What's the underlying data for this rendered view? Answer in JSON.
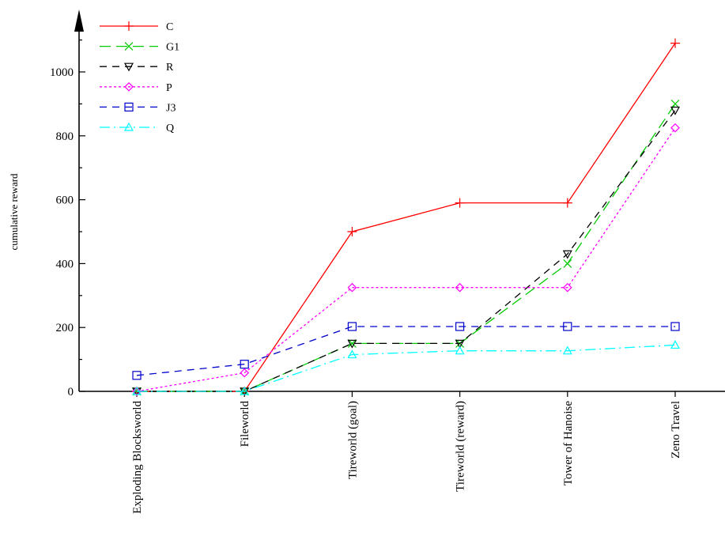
{
  "chart_data": {
    "type": "line",
    "title": "",
    "xlabel": "",
    "ylabel": "cumulative reward",
    "categories": [
      "Exploding Blocksworld",
      "Fileworld",
      "Tireworld (goal)",
      "Tireworld (reward)",
      "Tower of Hanoise",
      "Zeno Travel"
    ],
    "ylim": [
      0,
      1100
    ],
    "yticks": [
      0,
      200,
      400,
      600,
      800,
      1000
    ],
    "grid": false,
    "legend_position": "top-left",
    "series": [
      {
        "name": "C",
        "values": [
          0,
          0,
          500,
          590,
          590,
          1090
        ],
        "color": "#ff0000",
        "marker": "plus",
        "dash": "solid"
      },
      {
        "name": "G1",
        "values": [
          0,
          0,
          150,
          150,
          400,
          900
        ],
        "color": "#00cc00",
        "marker": "cross",
        "dash": "long-dash"
      },
      {
        "name": "R",
        "values": [
          0,
          0,
          150,
          150,
          430,
          880
        ],
        "color": "#000000",
        "marker": "triangle-down",
        "dash": "dash"
      },
      {
        "name": "P",
        "values": [
          0,
          58,
          325,
          325,
          325,
          825
        ],
        "color": "#ff00ff",
        "marker": "diamond",
        "dash": "dot"
      },
      {
        "name": "J3",
        "values": [
          50,
          85,
          203,
          203,
          203,
          203
        ],
        "color": "#0000cc",
        "marker": "square",
        "dash": "dash"
      },
      {
        "name": "Q",
        "values": [
          0,
          0,
          115,
          127,
          127,
          145
        ],
        "color": "#00ffff",
        "marker": "triangle-up",
        "dash": "dash-dot"
      }
    ]
  }
}
